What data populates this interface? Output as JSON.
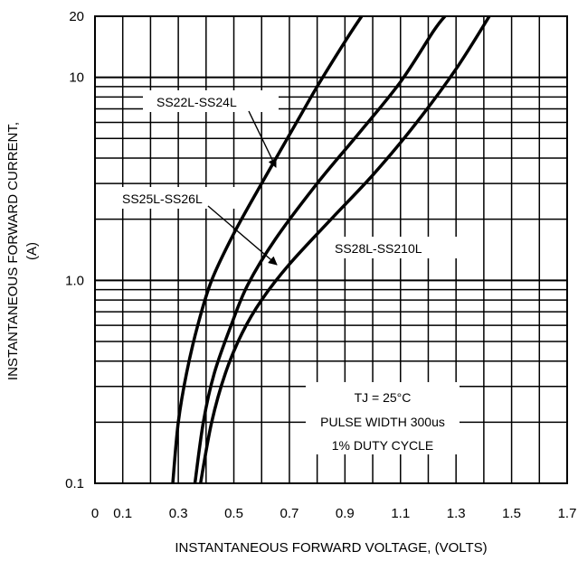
{
  "chart_data": {
    "type": "line",
    "title": "",
    "xlabel": "INSTANTANEOUS FORWARD VOLTAGE, (VOLTS)",
    "ylabel_line1": "INSTANTANEOUS FORWARD CURRENT,",
    "ylabel_line2": "(A)",
    "xlim": [
      0,
      1.7
    ],
    "ylim": [
      0.1,
      20
    ],
    "yscale": "log",
    "grid": true,
    "x_ticks": [
      0,
      0.1,
      0.3,
      0.5,
      0.7,
      0.9,
      1.1,
      1.3,
      1.5,
      1.7
    ],
    "x_tick_labels": [
      "0",
      "0.1",
      "0.3",
      "0.5",
      "0.7",
      "0.9",
      "1.1",
      "1.3",
      "1.5",
      "1.7"
    ],
    "y_tick_labels": [
      {
        "value": 0.1,
        "label": "0.1"
      },
      {
        "value": 1.0,
        "label": "1.0"
      },
      {
        "value": 10,
        "label": "10"
      },
      {
        "value": 20,
        "label": "20"
      }
    ],
    "series": [
      {
        "name": "SS22L-SS24L",
        "points": [
          [
            0.28,
            0.1
          ],
          [
            0.3,
            0.2
          ],
          [
            0.33,
            0.35
          ],
          [
            0.37,
            0.6
          ],
          [
            0.42,
            1.0
          ],
          [
            0.5,
            1.7
          ],
          [
            0.6,
            3.0
          ],
          [
            0.7,
            5.2
          ],
          [
            0.8,
            9.0
          ],
          [
            0.9,
            15.0
          ],
          [
            0.96,
            20.0
          ]
        ]
      },
      {
        "name": "SS25L-SS26L",
        "points": [
          [
            0.36,
            0.1
          ],
          [
            0.39,
            0.2
          ],
          [
            0.43,
            0.35
          ],
          [
            0.49,
            0.6
          ],
          [
            0.55,
            0.95
          ],
          [
            0.65,
            1.6
          ],
          [
            0.8,
            3.0
          ],
          [
            0.95,
            5.3
          ],
          [
            1.1,
            9.5
          ],
          [
            1.22,
            17.0
          ],
          [
            1.26,
            20.0
          ]
        ]
      },
      {
        "name": "SS28L-SS210L",
        "points": [
          [
            0.38,
            0.1
          ],
          [
            0.42,
            0.2
          ],
          [
            0.47,
            0.35
          ],
          [
            0.53,
            0.55
          ],
          [
            0.6,
            0.8
          ],
          [
            0.7,
            1.2
          ],
          [
            0.85,
            2.0
          ],
          [
            1.0,
            3.3
          ],
          [
            1.15,
            5.8
          ],
          [
            1.3,
            11.0
          ],
          [
            1.42,
            20.0
          ]
        ]
      }
    ],
    "annotations": {
      "label_a": "SS22L-SS24L",
      "label_b": "SS25L-SS26L",
      "label_c": "SS28L-SS210L",
      "conditions": [
        "TJ = 25°C",
        "PULSE WIDTH 300us",
        "1% DUTY CYCLE"
      ]
    }
  }
}
